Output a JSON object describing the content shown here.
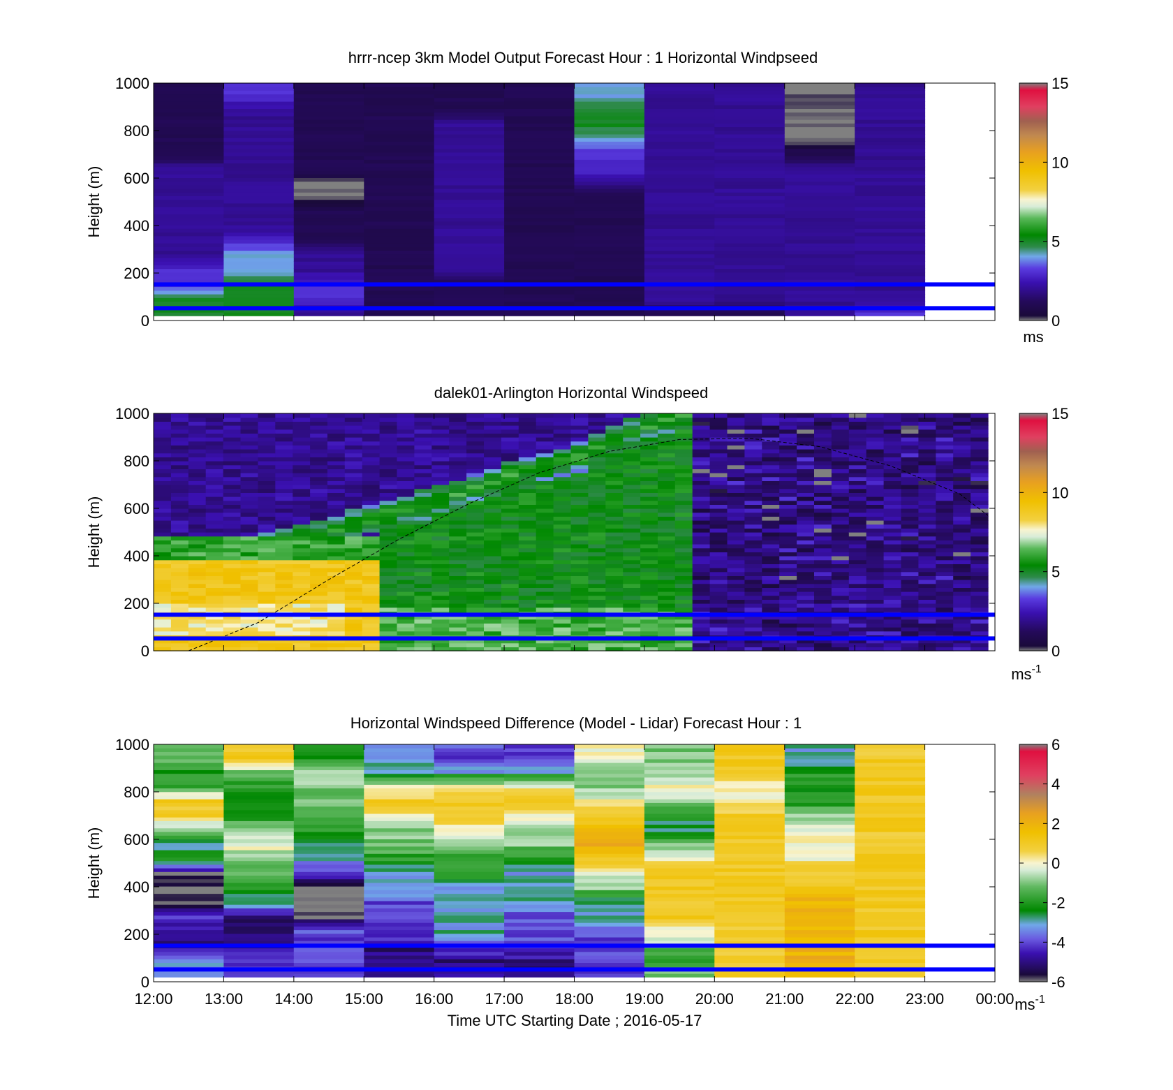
{
  "xlabel": "Time UTC  Starting Date ; 2016-05-17",
  "x_ticks": [
    "12:00",
    "13:00",
    "14:00",
    "15:00",
    "16:00",
    "17:00",
    "18:00",
    "19:00",
    "20:00",
    "21:00",
    "22:00",
    "23:00",
    "00:00"
  ],
  "y_ticks": [
    "0",
    "200",
    "400",
    "600",
    "800",
    "1000"
  ],
  "ylabel": "Height (m)",
  "reference_line_color": "#0000ff",
  "chart_data": [
    {
      "type": "heatmap",
      "title": "hrrr-ncep 3km Model Output   Forecast Hour : 1 Horizontal Windpseed",
      "ylabel": "Height (m)",
      "xlim": [
        12,
        24
      ],
      "ylim": [
        0,
        1000
      ],
      "colorbar": {
        "range": [
          0,
          15
        ],
        "ticks": [
          "0",
          "5",
          "10",
          "15"
        ],
        "unit": "ms"
      },
      "reference_heights_m": [
        52,
        152
      ],
      "hours": [
        12,
        13,
        14,
        15,
        16,
        17,
        18,
        19,
        20,
        21,
        22
      ],
      "columns": [
        [
          5,
          5,
          3,
          3,
          2,
          2,
          2,
          2,
          2,
          2,
          2,
          1,
          1,
          1,
          1,
          1
        ],
        [
          5,
          5,
          5,
          4,
          4,
          3,
          2,
          2,
          2,
          2,
          2,
          2,
          2,
          2,
          2,
          3
        ],
        [
          2,
          3,
          3,
          2,
          2,
          1,
          1,
          1,
          0,
          0,
          1,
          1,
          1,
          1,
          1,
          1
        ],
        [
          1,
          1,
          1,
          1,
          1,
          1,
          1,
          1,
          1,
          1,
          1,
          1,
          1,
          1,
          1,
          1
        ],
        [
          1,
          1,
          1,
          2,
          2,
          2,
          2,
          2,
          2,
          2,
          2,
          2,
          2,
          2,
          1,
          1
        ],
        [
          1,
          1,
          1,
          1,
          1,
          1,
          1,
          1,
          1,
          1,
          1,
          1,
          1,
          1,
          1,
          1
        ],
        [
          1,
          1,
          1,
          1,
          1,
          1,
          1,
          1,
          1,
          2,
          3,
          3,
          4,
          5,
          5,
          4
        ],
        [
          1,
          2,
          2,
          2,
          2,
          2,
          2,
          2,
          2,
          2,
          2,
          2,
          2,
          2,
          2,
          2
        ],
        [
          1,
          2,
          2,
          2,
          2,
          2,
          2,
          2,
          2,
          2,
          2,
          2,
          2,
          2,
          2,
          2
        ],
        [
          2,
          2,
          2,
          2,
          2,
          2,
          2,
          2,
          2,
          2,
          2,
          1,
          0,
          0,
          0,
          0
        ],
        [
          3,
          2,
          2,
          2,
          2,
          2,
          2,
          2,
          2,
          2,
          2,
          2,
          2,
          2,
          2,
          2
        ]
      ]
    },
    {
      "type": "heatmap",
      "title": "dalek01-Arlington  Horizontal Windspeed",
      "ylabel": "Height (m)",
      "xlim": [
        12,
        24
      ],
      "ylim": [
        0,
        1000
      ],
      "colorbar": {
        "range": [
          0,
          15
        ],
        "ticks": [
          "0",
          "5",
          "10",
          "15"
        ],
        "unit": "ms-1"
      },
      "reference_heights_m": [
        52,
        152
      ],
      "boundary_layer_height": {
        "hours": [
          12.5,
          13.5,
          14.5,
          15.5,
          16.5,
          17.5,
          18.5,
          19.5,
          20.5,
          21.5,
          22.5,
          23.5,
          23.9
        ],
        "heights_m": [
          0,
          120,
          300,
          470,
          620,
          750,
          840,
          890,
          895,
          860,
          780,
          660,
          570
        ]
      },
      "features": {
        "jet_core_height_m": [
          360,
          400,
          470,
          560,
          640,
          740,
          820,
          900,
          960,
          1000
        ],
        "jet_hours": [
          12.0,
          13.0,
          14.0,
          15.0,
          16.0,
          17.0,
          18.0,
          18.5,
          19.0,
          19.5
        ]
      }
    },
    {
      "type": "heatmap",
      "title": "Horizontal Windspeed Difference (Model - Lidar) Forecast Hour : 1",
      "ylabel": "Height (m)",
      "xlim": [
        12,
        24
      ],
      "ylim": [
        0,
        1000
      ],
      "colorbar": {
        "range": [
          -6,
          6
        ],
        "ticks": [
          "-6",
          "-4",
          "-2",
          "0",
          "2",
          "4",
          "6"
        ],
        "unit": "ms-1"
      },
      "reference_heights_m": [
        52,
        152
      ],
      "hours": [
        12,
        13,
        14,
        15,
        16,
        17,
        18,
        19,
        20,
        21,
        22
      ],
      "columns": [
        [
          -3,
          -3,
          -5,
          -5,
          -4,
          -6,
          -6,
          -6,
          -2,
          -3,
          -1,
          1,
          1,
          -2,
          -2,
          -1
        ],
        [
          -4,
          -4,
          -5,
          -5,
          -5,
          -3,
          -2,
          -1,
          -1,
          0,
          -1,
          -2,
          -2,
          -2,
          -1,
          1
        ],
        [
          -4,
          -4,
          -4,
          -4,
          -6,
          -6,
          -6,
          -4,
          -3,
          -3,
          -2,
          -1,
          -1,
          -1,
          -1,
          -2
        ],
        [
          -5,
          -5,
          -5,
          -4,
          -4,
          -4,
          -3,
          -3,
          -2,
          -1,
          -1,
          0,
          1,
          0,
          -3,
          -3
        ],
        [
          -5,
          -5,
          -4,
          -3,
          -3,
          -3,
          -3,
          -2,
          -2,
          -1,
          0,
          1,
          1,
          0,
          -3,
          -4
        ],
        [
          -5,
          -5,
          -4,
          -4,
          -4,
          -3,
          -3,
          -3,
          -2,
          -1,
          -1,
          0,
          1,
          0,
          -3,
          -4
        ],
        [
          -4,
          -4,
          -4,
          -4,
          -3,
          -3,
          -1,
          0,
          1,
          2,
          2,
          1,
          0,
          -1,
          -1,
          0
        ],
        [
          -1,
          -2,
          -1,
          0,
          1,
          1,
          1,
          1,
          0,
          -1,
          -3,
          -2,
          -1,
          0,
          -1,
          -1
        ],
        [
          1,
          1,
          1,
          1,
          1,
          1,
          1,
          1,
          1,
          1,
          1,
          1,
          0,
          0,
          1,
          1
        ],
        [
          2,
          2,
          2,
          2,
          2,
          2,
          1,
          1,
          0,
          0,
          0,
          -1,
          -2,
          -2,
          -2,
          -3
        ],
        [
          1,
          1,
          1,
          1,
          1,
          1,
          1,
          1,
          1,
          1,
          1,
          1,
          1,
          1,
          1,
          1
        ]
      ]
    }
  ]
}
